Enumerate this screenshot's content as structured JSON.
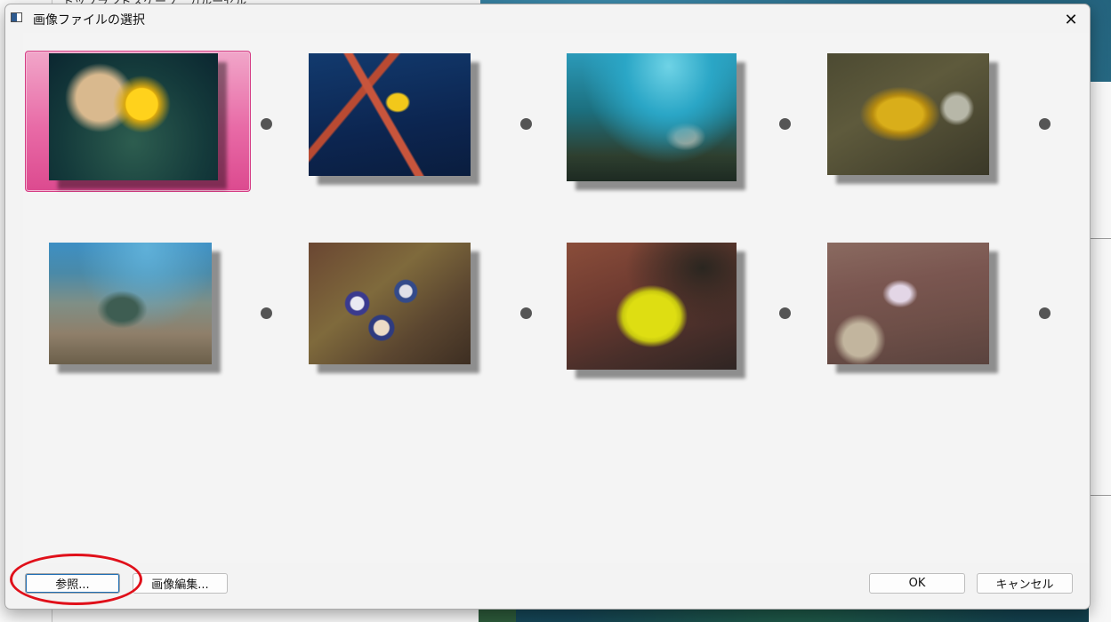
{
  "background": {
    "top_text": "トップランドスケープ　カルーセル"
  },
  "dialog": {
    "title": "画像ファイルの選択",
    "close_glyph": "✕"
  },
  "thumbnails": [
    {
      "name": "christmas-tree-worm",
      "selected": true
    },
    {
      "name": "nudibranch-on-sea-fan",
      "selected": false
    },
    {
      "name": "lionfish-reef",
      "selected": false
    },
    {
      "name": "yellow-nudibranch",
      "selected": false
    },
    {
      "name": "sea-turtle",
      "selected": false
    },
    {
      "name": "harlequin-shrimp",
      "selected": false
    },
    {
      "name": "yellow-boxfish",
      "selected": false
    },
    {
      "name": "goby-and-shrimp",
      "selected": false
    }
  ],
  "buttons": {
    "browse": "参照...",
    "edit_image": "画像編集...",
    "ok": "OK",
    "cancel": "キャンセル"
  },
  "colors": {
    "selection": "#e86aa6",
    "annotation": "#e0101a",
    "focus": "#1f6fb5"
  }
}
